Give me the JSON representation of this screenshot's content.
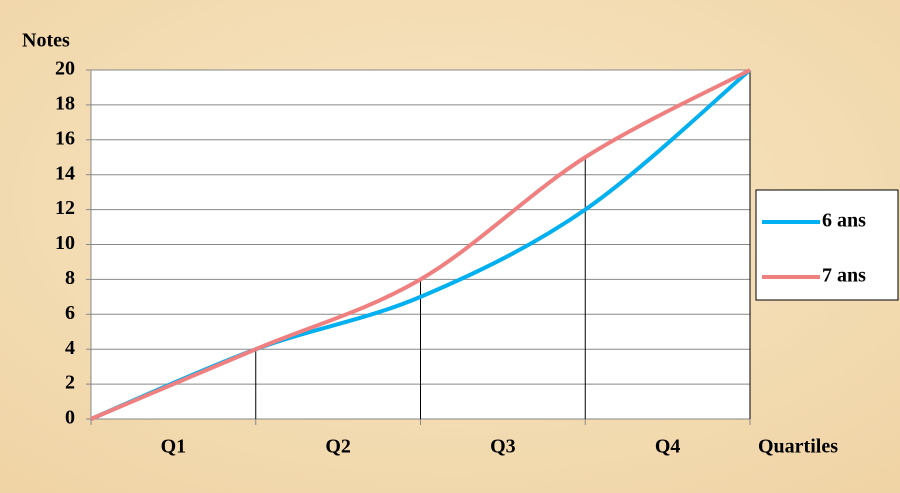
{
  "chart_data": {
    "type": "line",
    "y_label": "Notes",
    "x_label": "Quartiles",
    "categories": [
      "Q1",
      "Q2",
      "Q3",
      "Q4"
    ],
    "x": [
      0,
      1,
      2,
      3,
      4
    ],
    "xlim": [
      0,
      4
    ],
    "series": [
      {
        "name": "6 ans",
        "color": "#00b0f0",
        "values": [
          0,
          4,
          7,
          12,
          20
        ]
      },
      {
        "name": "7 ans",
        "color": "#f08080",
        "values": [
          0,
          4,
          8,
          15,
          20
        ]
      }
    ],
    "ylim": [
      0,
      20
    ],
    "yticks": [
      0,
      2,
      4,
      6,
      8,
      10,
      12,
      14,
      16,
      18,
      20
    ],
    "grid": true,
    "smooth": true,
    "drop_lines": true,
    "legend": "right"
  }
}
